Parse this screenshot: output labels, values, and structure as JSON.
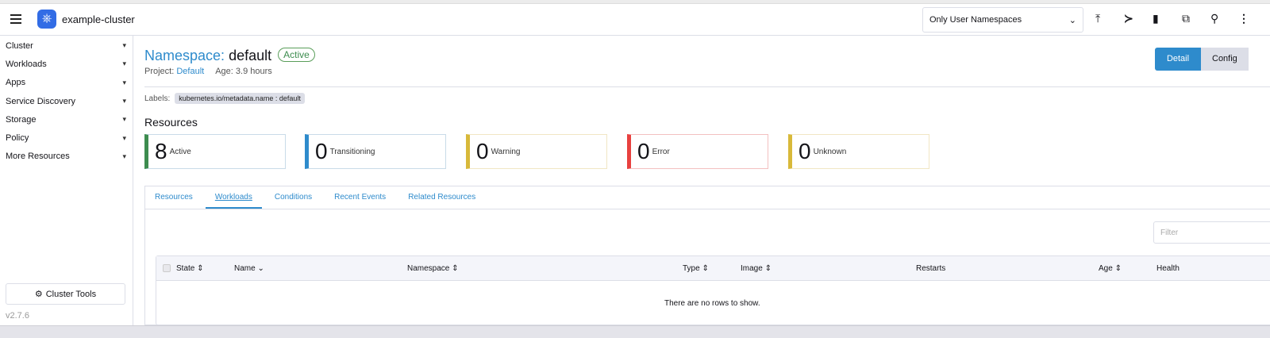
{
  "header": {
    "cluster_name": "example-cluster",
    "namespace_filter": "Only User Namespaces",
    "icons": [
      "import-yaml-icon",
      "kubectl-shell-icon",
      "kubeconfig-file-icon",
      "copy-kubeconfig-icon",
      "search-icon",
      "more-icon"
    ]
  },
  "sidebar": {
    "items": [
      {
        "label": "Cluster"
      },
      {
        "label": "Workloads"
      },
      {
        "label": "Apps"
      },
      {
        "label": "Service Discovery"
      },
      {
        "label": "Storage"
      },
      {
        "label": "Policy"
      },
      {
        "label": "More Resources"
      }
    ],
    "cluster_tools": "Cluster Tools",
    "version": "v2.7.6"
  },
  "page": {
    "title_prefix": "Namespace:",
    "title_name": "default",
    "state": "Active",
    "project_label": "Project:",
    "project": "Default",
    "age": "Age: 3.9 hours",
    "labels_label": "Labels:",
    "label_chip": "kubernetes.io/metadata.name : default",
    "detail": "Detail",
    "config": "Config"
  },
  "resources": {
    "heading": "Resources",
    "cards": [
      {
        "count": "8",
        "label": "Active",
        "color": "#3d8c4f"
      },
      {
        "count": "0",
        "label": "Transitioning",
        "color": "#2e8bcc"
      },
      {
        "count": "0",
        "label": "Warning",
        "color": "#d8b93a"
      },
      {
        "count": "0",
        "label": "Error",
        "color": "#e8413f"
      },
      {
        "count": "0",
        "label": "Unknown",
        "color": "#d8b93a"
      }
    ]
  },
  "tabs": [
    {
      "label": "Resources"
    },
    {
      "label": "Workloads",
      "active": true
    },
    {
      "label": "Conditions"
    },
    {
      "label": "Recent Events"
    },
    {
      "label": "Related Resources"
    }
  ],
  "table": {
    "filter_placeholder": "Filter",
    "columns": [
      "State",
      "Name",
      "Namespace",
      "Type",
      "Image",
      "Restarts",
      "Age",
      "Health"
    ],
    "empty": "There are no rows to show."
  }
}
